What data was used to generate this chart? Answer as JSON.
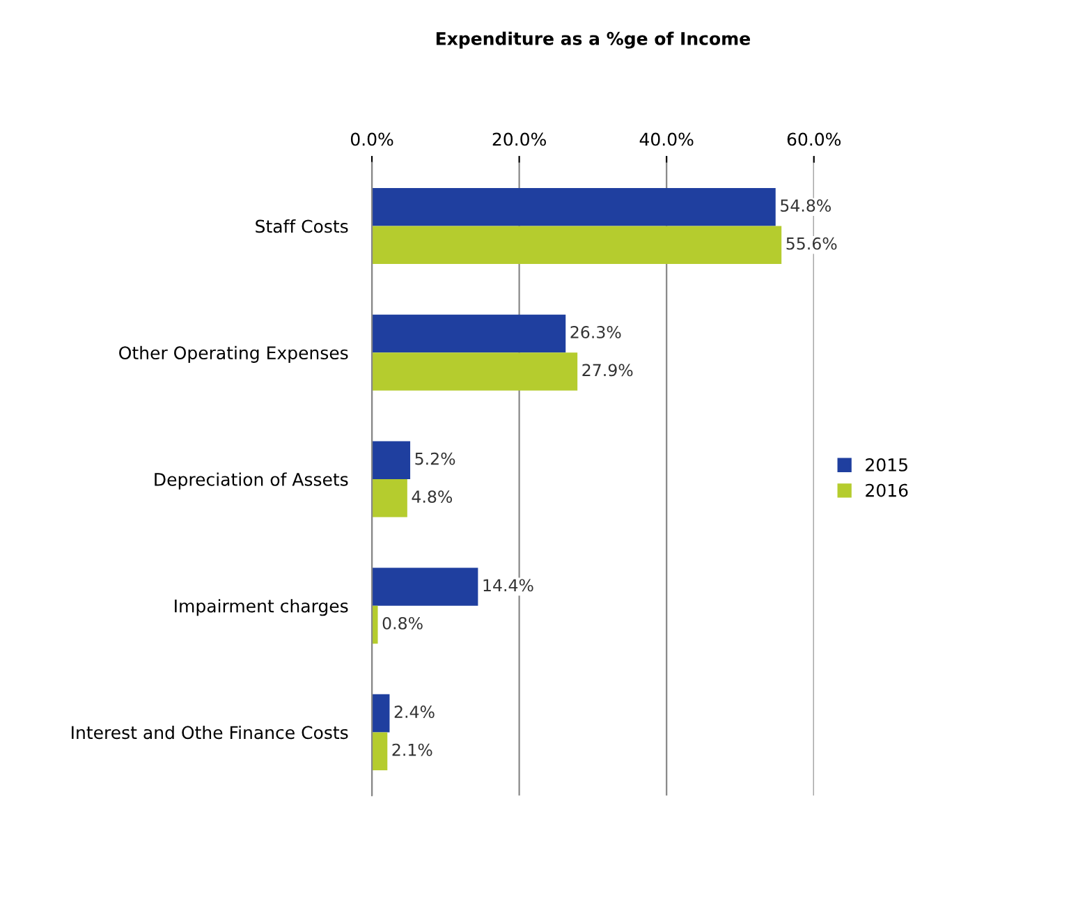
{
  "chart_data": {
    "type": "bar",
    "orientation": "horizontal",
    "title": "Expenditure as a %ge of Income",
    "categories": [
      "Staff Costs",
      "Other Operating Expenses",
      "Depreciation of Assets",
      "Impairment charges",
      "Interest and Othe Finance Costs"
    ],
    "series": [
      {
        "name": "2015",
        "color": "#1f3f9f",
        "values": [
          54.8,
          26.3,
          5.2,
          14.4,
          2.4
        ],
        "value_labels": [
          "54.8%",
          "26.3%",
          "5.2%",
          "14.4%",
          "2.4%"
        ]
      },
      {
        "name": "2016",
        "color": "#b5cc2e",
        "values": [
          55.6,
          27.9,
          4.8,
          0.8,
          2.1
        ],
        "value_labels": [
          "55.6%",
          "27.9%",
          "4.8%",
          "0.8%",
          "2.1%"
        ]
      }
    ],
    "xlim": [
      0,
      60
    ],
    "xticks": [
      {
        "value": 0,
        "label": "0.0%"
      },
      {
        "value": 20,
        "label": "20.0%"
      },
      {
        "value": 40,
        "label": "40.0%"
      },
      {
        "value": 60,
        "label": "60.0%"
      }
    ],
    "grid": "x",
    "legend": "right"
  }
}
